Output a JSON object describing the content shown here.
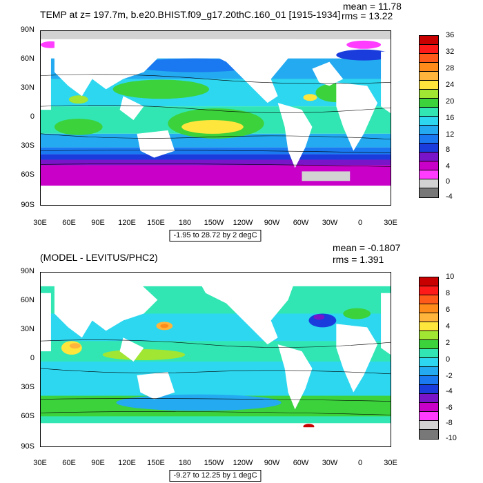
{
  "top": {
    "title": "TEMP at z= 197.7m, b.e20.BHIST.f09_g17.20thC.160_01 [1915-1934]",
    "mean": "mean = 11.78",
    "rms": "rms = 13.22",
    "range_note": "-1.95 to 28.72 by 2 degC",
    "y_labels": [
      "90N",
      "60N",
      "30N",
      "0",
      "30S",
      "60S",
      "90S"
    ],
    "x_labels": [
      "30E",
      "60E",
      "90E",
      "120E",
      "150E",
      "180",
      "150W",
      "120W",
      "90W",
      "60W",
      "30W",
      "0",
      "30E"
    ],
    "colorbar_labels": [
      "36",
      "32",
      "28",
      "24",
      "20",
      "16",
      "12",
      "8",
      "4",
      "0",
      "-4"
    ],
    "colorbar_colors": [
      "#c80000",
      "#ff1a1a",
      "#ff5a1a",
      "#ff8c1a",
      "#ffb43c",
      "#ffe63c",
      "#a0e632",
      "#3cd23c",
      "#32e6b4",
      "#2dd7f0",
      "#23aaf0",
      "#1a78f0",
      "#1a3cdc",
      "#7a14c8",
      "#c800c8",
      "#ff3cff",
      "#d2d2d2",
      "#787878"
    ]
  },
  "bottom": {
    "title": "(MODEL - LEVITUS/PHC2)",
    "mean": "mean = -0.1807",
    "rms": "rms = 1.391",
    "range_note": "-9.27 to 12.25 by 1 degC",
    "y_labels": [
      "90N",
      "60N",
      "30N",
      "0",
      "30S",
      "60S",
      "90S"
    ],
    "x_labels": [
      "30E",
      "60E",
      "90E",
      "120E",
      "150E",
      "180",
      "150W",
      "120W",
      "90W",
      "60W",
      "30W",
      "0",
      "30E"
    ],
    "colorbar_labels": [
      "10",
      "8",
      "6",
      "4",
      "2",
      "0",
      "-2",
      "-4",
      "-6",
      "-8",
      "-10"
    ],
    "colorbar_colors": [
      "#c80000",
      "#ff1a1a",
      "#ff5a1a",
      "#ff8c1a",
      "#ffb43c",
      "#ffe63c",
      "#a0e632",
      "#3cd23c",
      "#32e6b4",
      "#2dd7f0",
      "#23aaf0",
      "#1a78f0",
      "#1a3cdc",
      "#7a14c8",
      "#c800c8",
      "#ff3cff",
      "#d2d2d2",
      "#787878"
    ]
  }
}
